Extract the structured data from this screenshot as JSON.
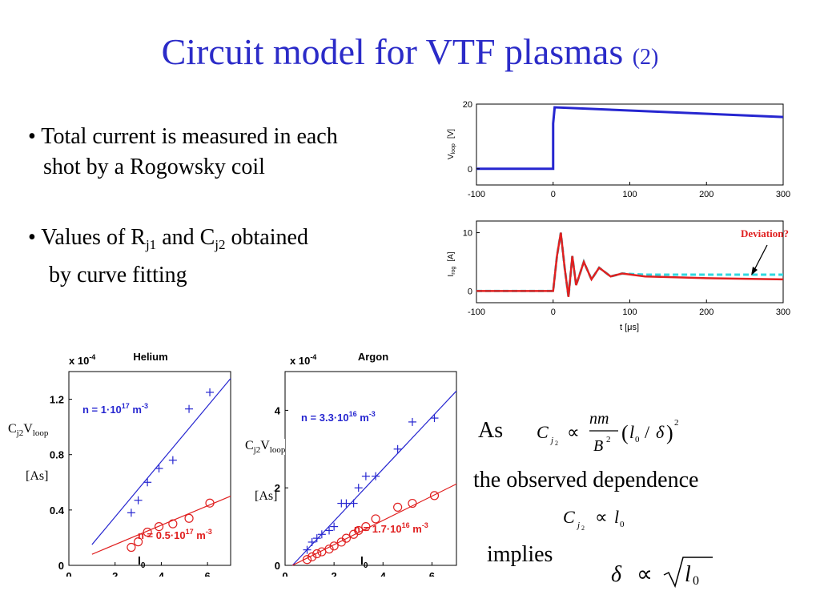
{
  "slide": {
    "title": "Circuit model for VTF plasmas",
    "title_suffix": "(2)",
    "bullets": [
      {
        "line1": "• Total current is measured in each",
        "line2": "shot by a Rogowsky coil"
      },
      {
        "pre": "• Values of R",
        "sub1": "j1",
        "mid": " and C",
        "sub2": "j2",
        "post": " obtained",
        "line2": "by curve fitting"
      }
    ],
    "ylabel_as": "[As]",
    "ylabel_c": "C",
    "ylabel_c_sub": "j2",
    "ylabel_v": "V",
    "ylabel_v_sub": "loop",
    "eq": {
      "as_word": "As",
      "dependence": "the observed dependence",
      "implies": "implies"
    },
    "colors": {
      "title": "#2B2BC8",
      "blue": "#2626D0",
      "red": "#E02020",
      "cyan": "#30D8E0",
      "darkred": "#B01818"
    }
  },
  "chart_data": [
    {
      "type": "line",
      "ylabel": "V",
      "ylabel_sub": "loop",
      "ylabel_unit": "[V]",
      "xlim": [
        -100,
        300
      ],
      "ylim": [
        -5,
        20
      ],
      "xticks": [
        "-100",
        "0",
        "100",
        "200",
        "300"
      ],
      "yticks": [
        "0",
        "20"
      ],
      "series": [
        {
          "x": [
            -100,
            0,
            0,
            2,
            300
          ],
          "y": [
            0,
            0,
            14,
            19,
            16
          ]
        }
      ]
    },
    {
      "type": "line",
      "ylabel": "I",
      "ylabel_sub": "rog",
      "ylabel_unit": "[A]",
      "xlabel": "t [μs]",
      "xlim": [
        -100,
        300
      ],
      "ylim": [
        -2,
        12
      ],
      "xticks": [
        "-100",
        "0",
        "100",
        "200",
        "300"
      ],
      "yticks": [
        "0",
        "10"
      ],
      "annotation": "Deviation?",
      "series": [
        {
          "x": [
            -100,
            0,
            5,
            10,
            15,
            20,
            25,
            30,
            40,
            50,
            60,
            75,
            90,
            120,
            150,
            200,
            250,
            300
          ],
          "y": [
            0,
            0,
            6,
            10,
            4,
            -1,
            6,
            1,
            5,
            2,
            4,
            2.5,
            3,
            2.5,
            2.4,
            2.2,
            2.1,
            2.0
          ]
        },
        {
          "x": [
            -100,
            0,
            5,
            10,
            15,
            20,
            25,
            30,
            40,
            50,
            60,
            75,
            90,
            120,
            150,
            200,
            250,
            300
          ],
          "y": [
            0,
            0,
            6,
            10,
            4,
            -1,
            6,
            1,
            5,
            2,
            4,
            2.5,
            3,
            2.8,
            2.8,
            2.8,
            2.8,
            2.8
          ]
        }
      ]
    },
    {
      "type": "scatter",
      "title": "Helium",
      "scale_label": "x 10",
      "scale_exp": "-4",
      "xlabel": "l",
      "xlabel_sub": "0",
      "xlim": [
        0,
        7
      ],
      "ylim": [
        0,
        1.4
      ],
      "xticks": [
        "0",
        "2",
        "4",
        "6"
      ],
      "yticks": [
        "0",
        "0.4",
        "0.8",
        "1.2"
      ],
      "series": [
        {
          "name": "n = 1·10",
          "exp": "17",
          "unit": " m",
          "unit_exp": "-3",
          "x": [
            2.7,
            3.0,
            3.4,
            3.9,
            4.5,
            5.2,
            6.1
          ],
          "y": [
            0.38,
            0.47,
            0.6,
            0.7,
            0.76,
            1.13,
            1.25
          ]
        },
        {
          "name": "n = 0.5·10",
          "exp": "17",
          "unit": " m",
          "unit_exp": "-3",
          "x": [
            2.7,
            3.0,
            3.4,
            3.9,
            4.5,
            5.2,
            6.1
          ],
          "y": [
            0.13,
            0.17,
            0.24,
            0.28,
            0.3,
            0.34,
            0.45
          ]
        }
      ]
    },
    {
      "type": "scatter",
      "title": "Argon",
      "scale_label": "x 10",
      "scale_exp": "-4",
      "xlabel": "l",
      "xlabel_sub": "0",
      "xlim": [
        0,
        7
      ],
      "ylim": [
        0,
        5
      ],
      "xticks": [
        "0",
        "2",
        "4",
        "6"
      ],
      "yticks": [
        "0",
        "2",
        "4"
      ],
      "series": [
        {
          "name": "n = 3.3·10",
          "exp": "16",
          "unit": " m",
          "unit_exp": "-3",
          "x": [
            0.9,
            1.1,
            1.3,
            1.5,
            1.8,
            2.0,
            2.3,
            2.5,
            2.8,
            3.0,
            3.3,
            3.7,
            4.6,
            5.2,
            6.1
          ],
          "y": [
            0.4,
            0.6,
            0.7,
            0.8,
            0.9,
            1.0,
            1.6,
            1.6,
            1.6,
            2.0,
            2.3,
            2.3,
            3.0,
            3.7,
            3.8
          ]
        },
        {
          "name": "n = 1.7·10",
          "exp": "16",
          "unit": " m",
          "unit_exp": "-3",
          "x": [
            0.9,
            1.1,
            1.3,
            1.5,
            1.8,
            2.0,
            2.3,
            2.5,
            2.8,
            3.0,
            3.3,
            3.7,
            4.6,
            5.2,
            6.1
          ],
          "y": [
            0.15,
            0.22,
            0.3,
            0.35,
            0.42,
            0.5,
            0.6,
            0.7,
            0.8,
            0.9,
            1.0,
            1.2,
            1.5,
            1.6,
            1.8
          ]
        }
      ]
    }
  ]
}
